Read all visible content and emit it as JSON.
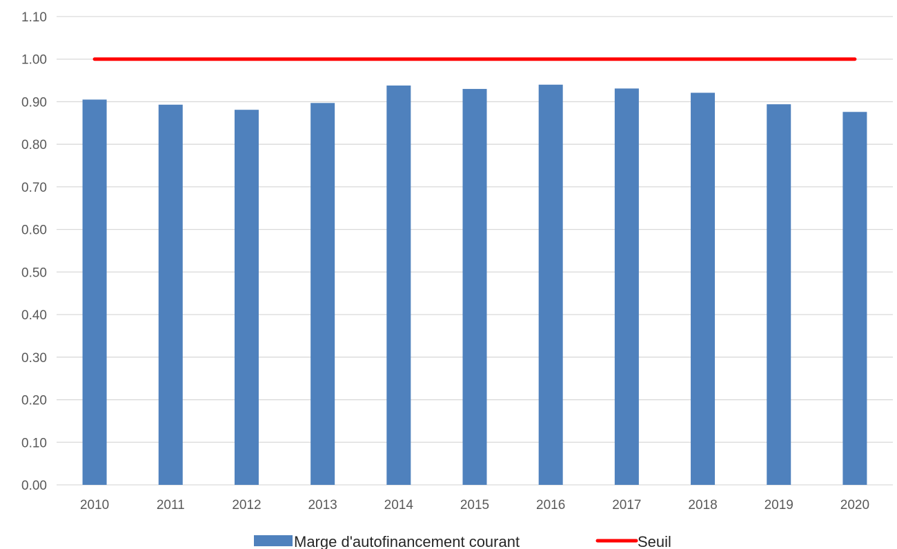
{
  "chart_data": {
    "type": "bar",
    "title": "",
    "xlabel": "",
    "ylabel": "",
    "categories": [
      "2010",
      "2011",
      "2012",
      "2013",
      "2014",
      "2015",
      "2016",
      "2017",
      "2018",
      "2019",
      "2020"
    ],
    "series": [
      {
        "name": "Marge d'autofinancement courant",
        "type": "bar",
        "color": "#4f81bd",
        "values": [
          0.905,
          0.893,
          0.881,
          0.897,
          0.938,
          0.93,
          0.94,
          0.931,
          0.921,
          0.894,
          0.876
        ]
      },
      {
        "name": "Seuil",
        "type": "line",
        "color": "#ff0000",
        "values": [
          1.0,
          1.0,
          1.0,
          1.0,
          1.0,
          1.0,
          1.0,
          1.0,
          1.0,
          1.0,
          1.0
        ]
      }
    ],
    "ylim": [
      0,
      1.1
    ],
    "yticks": [
      "0.00",
      "0.10",
      "0.20",
      "0.30",
      "0.40",
      "0.50",
      "0.60",
      "0.70",
      "0.80",
      "0.90",
      "1.00",
      "1.10"
    ],
    "grid": true,
    "legend_position": "bottom"
  }
}
